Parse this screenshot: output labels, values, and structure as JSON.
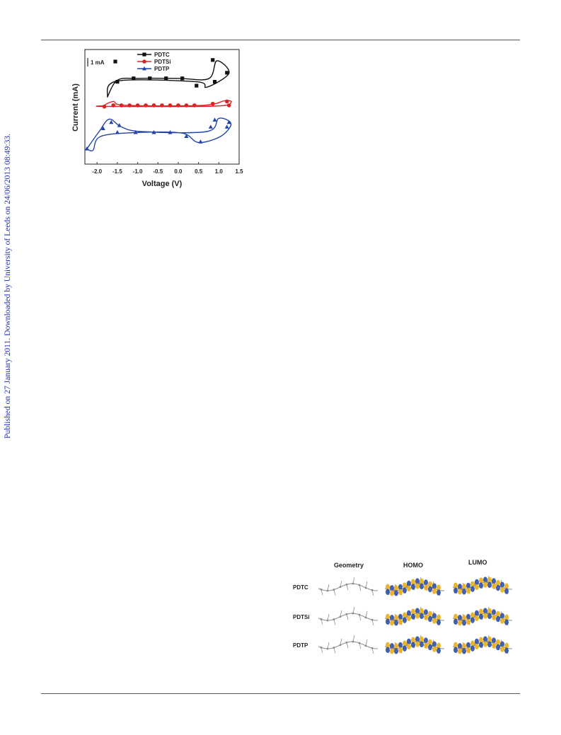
{
  "side_note": "Published on 27 January 2011. Downloaded by University of Leeds on 24/06/2013 08:49:33.",
  "chart_data": {
    "type": "line",
    "xlabel": "Voltage (V)",
    "ylabel": "Current (mA)",
    "xlim": [
      -2.3,
      1.5
    ],
    "x_ticks": [
      "-2.0",
      "-1.5",
      "-1.0",
      "-0.5",
      "0.0",
      "0.5",
      "1.0",
      "1.5"
    ],
    "scale_bar": "1 mA",
    "legend_position": "top-center",
    "grid": false,
    "series": [
      {
        "name": "PDTC",
        "color": "#111111",
        "marker": "square",
        "loop": [
          [
            -1.75,
            -1.3
          ],
          [
            -1.5,
            -0.2
          ],
          [
            -1.0,
            -0.08
          ],
          [
            0.0,
            -0.08
          ],
          [
            0.75,
            -0.1
          ],
          [
            0.95,
            1.05
          ],
          [
            1.25,
            0.25
          ],
          [
            0.7,
            -0.65
          ],
          [
            0.45,
            -0.3
          ],
          [
            -1.5,
            -0.25
          ],
          [
            -1.75,
            -1.3
          ]
        ],
        "markers": [
          [
            -1.55,
            1.0
          ],
          [
            -1.5,
            -0.3
          ],
          [
            -1.1,
            -0.08
          ],
          [
            -0.7,
            -0.08
          ],
          [
            -0.3,
            -0.08
          ],
          [
            0.1,
            -0.08
          ],
          [
            0.45,
            -0.55
          ],
          [
            0.85,
            1.1
          ],
          [
            0.9,
            -0.3
          ],
          [
            1.2,
            0.28
          ]
        ]
      },
      {
        "name": "PDTSi",
        "color": "#dd2222",
        "marker": "circle",
        "loop": [
          [
            -1.85,
            0.02
          ],
          [
            -1.6,
            0.3
          ],
          [
            -1.3,
            0.05
          ],
          [
            0.6,
            0.05
          ],
          [
            1.15,
            0.35
          ],
          [
            1.3,
            0.25
          ],
          [
            0.9,
            0.0
          ],
          [
            -1.8,
            -0.02
          ],
          [
            -1.85,
            0.02
          ]
        ],
        "markers": [
          [
            -1.82,
            -0.03
          ],
          [
            -1.6,
            0.05
          ],
          [
            -1.4,
            0.05
          ],
          [
            -1.2,
            0.05
          ],
          [
            -1.0,
            0.05
          ],
          [
            -0.8,
            0.05
          ],
          [
            -0.6,
            0.05
          ],
          [
            -0.4,
            0.05
          ],
          [
            -0.2,
            0.05
          ],
          [
            0.0,
            0.05
          ],
          [
            0.2,
            0.05
          ],
          [
            0.4,
            0.05
          ],
          [
            0.85,
            0.15
          ],
          [
            1.2,
            0.3
          ],
          [
            1.25,
            0.05
          ]
        ]
      },
      {
        "name": "PDTP",
        "color": "#2244aa",
        "marker": "triangle",
        "loop": [
          [
            -2.25,
            -1.1
          ],
          [
            -1.95,
            0.0
          ],
          [
            -1.7,
            0.8
          ],
          [
            -1.4,
            0.3
          ],
          [
            -0.9,
            0.0
          ],
          [
            0.7,
            0.0
          ],
          [
            1.0,
            0.85
          ],
          [
            1.3,
            0.5
          ],
          [
            1.05,
            -0.3
          ],
          [
            0.5,
            -0.7
          ],
          [
            0.1,
            -0.1
          ],
          [
            -0.9,
            -0.05
          ],
          [
            -1.9,
            -0.3
          ],
          [
            -2.1,
            -1.2
          ],
          [
            -2.25,
            -1.1
          ]
        ],
        "markers": [
          [
            -2.25,
            -1.1
          ],
          [
            -1.85,
            0.2
          ],
          [
            -1.65,
            0.6
          ],
          [
            -1.45,
            0.4
          ],
          [
            -1.5,
            -0.05
          ],
          [
            -1.05,
            -0.05
          ],
          [
            -0.6,
            -0.05
          ],
          [
            -0.2,
            -0.05
          ],
          [
            0.2,
            -0.3
          ],
          [
            0.55,
            -0.65
          ],
          [
            0.8,
            0.3
          ],
          [
            0.9,
            0.75
          ],
          [
            1.2,
            0.3
          ],
          [
            1.25,
            0.6
          ]
        ]
      }
    ]
  },
  "dft_figure": {
    "columns": [
      "Geometry",
      "HOMO",
      "LUMO"
    ],
    "rows": [
      "PDTC",
      "PDTSi",
      "PDTP"
    ],
    "colors": {
      "lobe_blue": "#2e4fa3",
      "lobe_yellow": "#e9ad1a",
      "atom": "#8a8a8a"
    }
  }
}
